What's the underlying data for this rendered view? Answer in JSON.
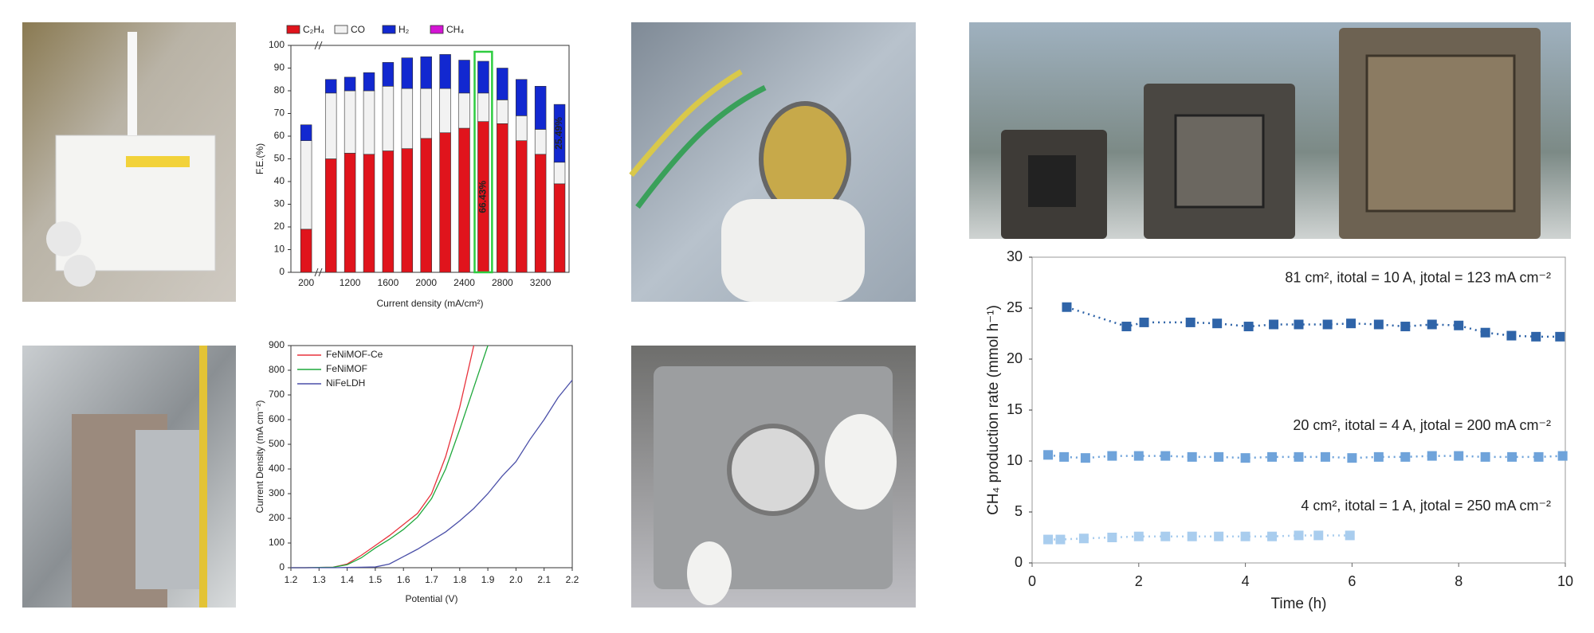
{
  "chart_data": [
    {
      "type": "bar",
      "stacked": true,
      "categories": [
        "200",
        null,
        "1200",
        null,
        "1600",
        null,
        "2000",
        null,
        "2400",
        null,
        "2800",
        null,
        "3200",
        null
      ],
      "series": [
        {
          "name": "C₂H₄",
          "color": "#e0141c",
          "values": [
            19,
            50,
            52.5,
            52,
            53.5,
            54.5,
            59,
            61.5,
            63.5,
            66.43,
            65.5,
            58,
            52,
            39
          ],
          "value_labels": [
            null,
            null,
            null,
            null,
            null,
            null,
            null,
            null,
            null,
            "66.43%",
            null,
            null,
            null,
            null
          ]
        },
        {
          "name": "CO",
          "color": "#f2f2f2",
          "values": [
            39,
            29,
            27.5,
            28,
            28.5,
            26.5,
            22,
            19.5,
            15.5,
            12.57,
            10.5,
            11,
            11,
            9.5
          ]
        },
        {
          "name": "H₂",
          "color": "#1228d0",
          "values": [
            7,
            6,
            6,
            8,
            10.5,
            13.5,
            14,
            15,
            14.5,
            14,
            14,
            16,
            19,
            25.49
          ],
          "value_labels": [
            null,
            null,
            null,
            null,
            null,
            null,
            null,
            null,
            null,
            null,
            null,
            null,
            null,
            "25.49%"
          ]
        },
        {
          "name": "CH₄",
          "color": "#d414d4",
          "values": [
            0,
            0,
            0,
            0,
            0,
            0,
            0,
            0,
            0,
            0,
            0,
            0,
            0,
            0
          ]
        }
      ],
      "ylim": [
        0,
        100
      ],
      "yticks": [
        0,
        10,
        20,
        30,
        40,
        50,
        60,
        70,
        80,
        90,
        100
      ],
      "ylabel": "F.E.(%)",
      "xlabel": "Current density (mA/cm²)"
    },
    {
      "type": "line",
      "x": [
        1.2,
        1.25,
        1.3,
        1.35,
        1.4,
        1.45,
        1.5,
        1.55,
        1.6,
        1.65,
        1.7,
        1.75,
        1.8,
        1.85,
        1.9,
        1.95,
        2.0,
        2.05,
        2.1,
        2.15,
        2.2
      ],
      "series": [
        {
          "name": "FeNiMOF-Ce",
          "color": "#e8323c",
          "values": [
            0,
            0,
            1,
            2,
            15,
            50,
            90,
            130,
            175,
            220,
            300,
            450,
            650,
            900,
            null,
            null,
            null,
            null,
            null,
            null,
            null
          ]
        },
        {
          "name": "FeNiMOF",
          "color": "#1fa83c",
          "values": [
            0,
            0,
            1,
            2,
            12,
            40,
            80,
            115,
            155,
            205,
            280,
            400,
            560,
            730,
            900,
            null,
            null,
            null,
            null,
            null,
            null
          ]
        },
        {
          "name": "NiFeLDH",
          "color": "#4a4fa8",
          "values": [
            0,
            0,
            0,
            0,
            1,
            2,
            3,
            15,
            45,
            75,
            110,
            145,
            190,
            240,
            300,
            370,
            430,
            520,
            600,
            690,
            760
          ]
        }
      ],
      "xlim": [
        1.2,
        2.2
      ],
      "xticks": [
        1.2,
        1.3,
        1.4,
        1.5,
        1.6,
        1.7,
        1.8,
        1.9,
        {
          "value": 2,
          "label": "2.0"
        },
        2.1,
        2.2
      ],
      "ylim": [
        0,
        900
      ],
      "yticks": [
        0,
        100,
        200,
        300,
        400,
        500,
        600,
        700,
        800,
        900
      ],
      "xlabel": "Potential (V)",
      "ylabel": "Current Density (mA cm⁻²)"
    },
    {
      "type": "scatter",
      "series": [
        {
          "name": "81 cm², itotal = 10 A, jtotal = 123 mA cm⁻²",
          "color": "#2f64a8",
          "x": [
            0.65,
            1.77,
            2.1,
            2.97,
            3.47,
            4.06,
            4.53,
            5.0,
            5.54,
            5.98,
            6.5,
            7.0,
            7.5,
            8.0,
            8.5,
            8.99,
            9.45,
            9.9
          ],
          "values": [
            25.1,
            23.2,
            23.6,
            23.6,
            23.5,
            23.2,
            23.4,
            23.4,
            23.4,
            23.5,
            23.4,
            23.2,
            23.4,
            23.3,
            22.6,
            22.3,
            22.2,
            22.2
          ]
        },
        {
          "name": "20 cm², itotal = 4 A, jtotal = 200 mA cm⁻²",
          "color": "#6fa3da",
          "x": [
            0.3,
            0.6,
            1.0,
            1.5,
            2.0,
            2.5,
            3.0,
            3.5,
            4.0,
            4.5,
            5.0,
            5.5,
            6.0,
            6.5,
            7.0,
            7.5,
            8.0,
            8.5,
            9.0,
            9.5,
            9.95
          ],
          "values": [
            10.6,
            10.4,
            10.3,
            10.5,
            10.5,
            10.5,
            10.4,
            10.4,
            10.3,
            10.4,
            10.4,
            10.4,
            10.3,
            10.4,
            10.4,
            10.5,
            10.5,
            10.4,
            10.4,
            10.4,
            10.5
          ]
        },
        {
          "name": "4 cm², itotal = 1 A, jtotal = 250 mA cm⁻²",
          "color": "#a9cdee",
          "x": [
            0.3,
            0.53,
            0.97,
            1.5,
            2.0,
            2.5,
            3.0,
            3.5,
            4.0,
            4.5,
            5.0,
            5.37,
            5.96
          ],
          "values": [
            2.3,
            2.3,
            2.4,
            2.5,
            2.6,
            2.6,
            2.6,
            2.6,
            2.6,
            2.6,
            2.7,
            2.7,
            2.7
          ]
        }
      ],
      "xlim": [
        0,
        10
      ],
      "xticks": [
        0,
        2,
        4,
        6,
        8,
        10
      ],
      "ylim": [
        0,
        30
      ],
      "yticks": [
        0,
        5,
        10,
        15,
        20,
        25,
        30
      ],
      "xlabel": "Time (h)",
      "ylabel": "CH₄ production rate (mmol h⁻¹)"
    }
  ]
}
